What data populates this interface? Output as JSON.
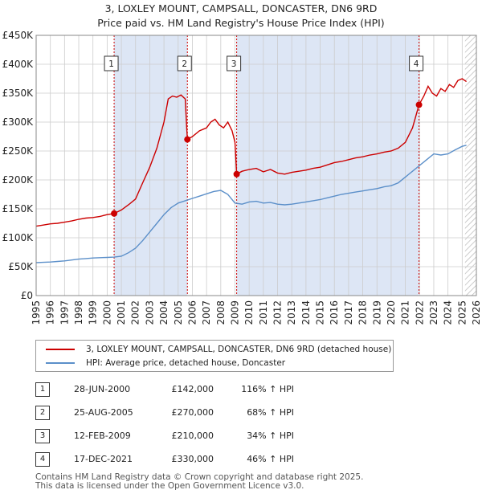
{
  "title_line1": "3, LOXLEY MOUNT, CAMPSALL, DONCASTER, DN6 9RD",
  "title_line2": "Price paid vs. HM Land Registry's House Price Index (HPI)",
  "legend": {
    "property_label": "3, LOXLEY MOUNT, CAMPSALL, DONCASTER, DN6 9RD (detached house)",
    "hpi_label": "HPI: Average price, detached house, Doncaster"
  },
  "transactions": [
    {
      "num": "1",
      "date": "28-JUN-2000",
      "price": "£142,000",
      "hpi": "116% ↑ HPI"
    },
    {
      "num": "2",
      "date": "25-AUG-2005",
      "price": "£270,000",
      "hpi": "68% ↑ HPI"
    },
    {
      "num": "3",
      "date": "12-FEB-2009",
      "price": "£210,000",
      "hpi": "34% ↑ HPI"
    },
    {
      "num": "4",
      "date": "17-DEC-2021",
      "price": "£330,000",
      "hpi": "46% ↑ HPI"
    }
  ],
  "footer_line1": "Contains HM Land Registry data © Crown copyright and database right 2025.",
  "footer_line2": "This data is licensed under the Open Government Licence v3.0.",
  "colors": {
    "property": "#cc0000",
    "hpi": "#5b8fc9",
    "shade": "#dde6f5",
    "grid": "#cccccc"
  },
  "chart_data": {
    "type": "line",
    "title": "3, LOXLEY MOUNT, CAMPSALL, DONCASTER, DN6 9RD",
    "subtitle": "Price paid vs. HM Land Registry's House Price Index (HPI)",
    "xlabel": "",
    "ylabel": "",
    "xlim": [
      1995,
      2026
    ],
    "ylim": [
      0,
      450000
    ],
    "y_ticks": [
      0,
      50000,
      100000,
      150000,
      200000,
      250000,
      300000,
      350000,
      400000,
      450000
    ],
    "y_tick_labels": [
      "£0",
      "£50K",
      "£100K",
      "£150K",
      "£200K",
      "£250K",
      "£300K",
      "£350K",
      "£400K",
      "£450K"
    ],
    "x_ticks": [
      1995,
      1996,
      1997,
      1998,
      1999,
      2000,
      2001,
      2002,
      2003,
      2004,
      2005,
      2006,
      2007,
      2008,
      2009,
      2010,
      2011,
      2012,
      2013,
      2014,
      2015,
      2016,
      2017,
      2018,
      2019,
      2020,
      2021,
      2022,
      2023,
      2024,
      2025,
      2026
    ],
    "x_tick_labels": [
      "1995",
      "1996",
      "1997",
      "1998",
      "1999",
      "2000",
      "2001",
      "2002",
      "2003",
      "2004",
      "2005",
      "2006",
      "2007",
      "2008",
      "2009",
      "2010",
      "2011",
      "2012",
      "2013",
      "2014",
      "2015",
      "2016",
      "2017",
      "2018",
      "2019",
      "2020",
      "2021",
      "2022",
      "2023",
      "2024",
      "2025",
      "2026"
    ],
    "shaded_periods": [
      [
        2000.49,
        2005.65
      ],
      [
        2009.12,
        2021.96
      ]
    ],
    "future_hatch_from": 2025.2,
    "sales": [
      {
        "label": "1",
        "x": 2000.49,
        "y": 142000
      },
      {
        "label": "2",
        "x": 2005.65,
        "y": 270000
      },
      {
        "label": "3",
        "x": 2009.12,
        "y": 210000
      },
      {
        "label": "4",
        "x": 2021.96,
        "y": 330000
      }
    ],
    "series": [
      {
        "name": "3, LOXLEY MOUNT, CAMPSALL, DONCASTER, DN6 9RD (detached house)",
        "x": [
          1995,
          1995.5,
          1996,
          1996.5,
          1997,
          1997.5,
          1998,
          1998.5,
          1999,
          1999.5,
          2000,
          2000.49,
          2001,
          2001.5,
          2002,
          2002.5,
          2003,
          2003.5,
          2004,
          2004.3,
          2004.6,
          2004.9,
          2005.2,
          2005.5,
          2005.6,
          2005.65,
          2006,
          2006.5,
          2007,
          2007.3,
          2007.6,
          2007.9,
          2008.2,
          2008.5,
          2008.8,
          2009.0,
          2009.12,
          2009.5,
          2010,
          2010.5,
          2011,
          2011.5,
          2012,
          2012.5,
          2013,
          2013.5,
          2014,
          2014.5,
          2015,
          2015.5,
          2016,
          2016.5,
          2017,
          2017.5,
          2018,
          2018.5,
          2019,
          2019.5,
          2020,
          2020.5,
          2021,
          2021.5,
          2021.96,
          2022.3,
          2022.6,
          2022.9,
          2023.2,
          2023.5,
          2023.8,
          2024.1,
          2024.4,
          2024.7,
          2025.0,
          2025.3
        ],
        "values": [
          120000,
          122000,
          124000,
          125000,
          127000,
          129000,
          132000,
          134000,
          135000,
          137000,
          140000,
          142000,
          148000,
          157000,
          167000,
          195000,
          222000,
          255000,
          300000,
          340000,
          345000,
          343000,
          347000,
          340000,
          290000,
          270000,
          275000,
          285000,
          290000,
          300000,
          305000,
          295000,
          290000,
          300000,
          285000,
          265000,
          210000,
          215000,
          218000,
          220000,
          214000,
          218000,
          212000,
          210000,
          213000,
          215000,
          217000,
          220000,
          222000,
          226000,
          230000,
          232000,
          235000,
          238000,
          240000,
          243000,
          245000,
          248000,
          250000,
          255000,
          265000,
          290000,
          330000,
          345000,
          362000,
          350000,
          345000,
          358000,
          353000,
          365000,
          360000,
          372000,
          375000,
          370000
        ]
      },
      {
        "name": "HPI: Average price, detached house, Doncaster",
        "x": [
          1995,
          1995.5,
          1996,
          1996.5,
          1997,
          1997.5,
          1998,
          1998.5,
          1999,
          1999.5,
          2000,
          2000.5,
          2001,
          2001.5,
          2002,
          2002.5,
          2003,
          2003.5,
          2004,
          2004.5,
          2005,
          2005.5,
          2006,
          2006.5,
          2007,
          2007.5,
          2008,
          2008.5,
          2009,
          2009.5,
          2010,
          2010.5,
          2011,
          2011.5,
          2012,
          2012.5,
          2013,
          2013.5,
          2014,
          2014.5,
          2015,
          2015.5,
          2016,
          2016.5,
          2017,
          2017.5,
          2018,
          2018.5,
          2019,
          2019.5,
          2020,
          2020.5,
          2021,
          2021.5,
          2022,
          2022.5,
          2023,
          2023.5,
          2024,
          2024.5,
          2025,
          2025.3
        ],
        "values": [
          57000,
          57500,
          58000,
          59000,
          60000,
          61500,
          63000,
          64000,
          65000,
          65500,
          66000,
          66500,
          68000,
          74000,
          82000,
          95000,
          110000,
          125000,
          140000,
          152000,
          160000,
          164000,
          168000,
          172000,
          176000,
          180000,
          182000,
          175000,
          160000,
          158000,
          162000,
          163000,
          160000,
          161000,
          158000,
          157000,
          158000,
          160000,
          162000,
          164000,
          166000,
          169000,
          172000,
          175000,
          177000,
          179000,
          181000,
          183000,
          185000,
          188000,
          190000,
          195000,
          205000,
          215000,
          225000,
          235000,
          245000,
          243000,
          245000,
          252000,
          258000,
          260000
        ]
      }
    ]
  }
}
